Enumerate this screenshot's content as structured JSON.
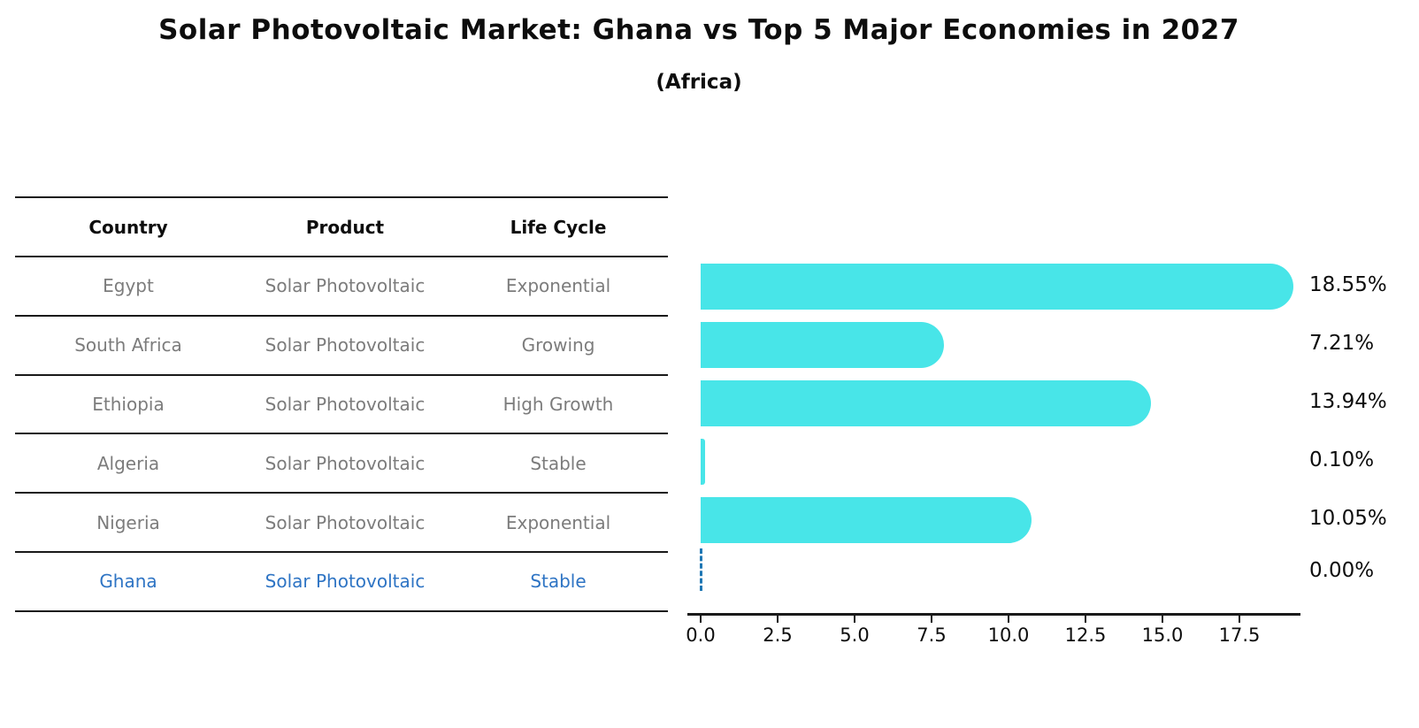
{
  "title": "Solar Photovoltaic Market: Ghana vs Top 5 Major Economies in 2027",
  "subtitle": "(Africa)",
  "table": {
    "headers": [
      "Country",
      "Product",
      "Life Cycle"
    ],
    "rows": [
      {
        "country": "Egypt",
        "product": "Solar Photovoltaic",
        "life_cycle": "Exponential",
        "highlight": false
      },
      {
        "country": "South Africa",
        "product": "Solar Photovoltaic",
        "life_cycle": "Growing",
        "highlight": false
      },
      {
        "country": "Ethiopia",
        "product": "Solar Photovoltaic",
        "life_cycle": "High Growth",
        "highlight": false
      },
      {
        "country": "Algeria",
        "product": "Solar Photovoltaic",
        "life_cycle": "Stable",
        "highlight": false
      },
      {
        "country": "Nigeria",
        "product": "Solar Photovoltaic",
        "life_cycle": "Exponential",
        "highlight": false
      },
      {
        "country": "Ghana",
        "product": "Solar Photovoltaic",
        "life_cycle": "Stable",
        "highlight": true
      }
    ]
  },
  "chart_data": {
    "type": "bar",
    "orientation": "horizontal",
    "title": "Solar Photovoltaic Market: Ghana vs Top 5 Major Economies in 2027",
    "subtitle": "(Africa)",
    "categories": [
      "Egypt",
      "South Africa",
      "Ethiopia",
      "Algeria",
      "Nigeria",
      "Ghana"
    ],
    "values": [
      18.55,
      7.21,
      13.94,
      0.1,
      10.05,
      0.0
    ],
    "value_labels": [
      "18.55%",
      "7.21%",
      "13.94%",
      "0.10%",
      "10.05%",
      "0.00%"
    ],
    "x_tick_values": [
      0.0,
      2.5,
      5.0,
      7.5,
      10.0,
      12.5,
      15.0,
      17.5
    ],
    "x_tick_labels": [
      "0.0",
      "2.5",
      "5.0",
      "7.5",
      "10.0",
      "12.5",
      "15.0",
      "17.5"
    ],
    "xlim": [
      0,
      19.48
    ],
    "grid": false,
    "legend": "none",
    "zero_value_marker": "dashed-line",
    "bar_color": "#48e5e8",
    "highlight_line_color": "#1f77b4"
  },
  "colors": {
    "bar": "#48e5e8",
    "highlight_text": "#2e74c4",
    "table_text": "#7c7c7c",
    "heading_text": "#0d0d0d",
    "dashed_line": "#1f77b4"
  }
}
